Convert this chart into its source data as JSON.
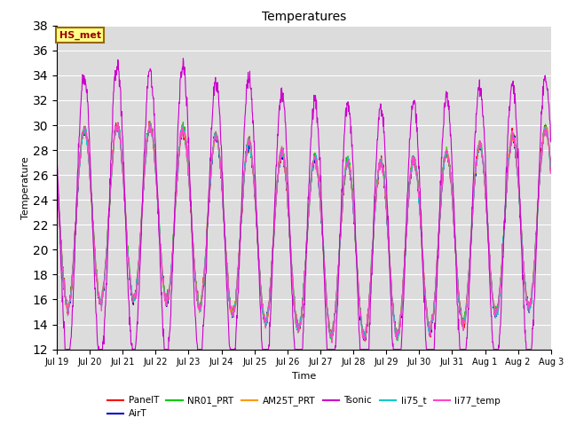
{
  "title": "Temperatures",
  "xlabel": "Time",
  "ylabel": "Temperature",
  "ylim": [
    12,
    38
  ],
  "yticks": [
    12,
    14,
    16,
    18,
    20,
    22,
    24,
    26,
    28,
    30,
    32,
    34,
    36,
    38
  ],
  "x_tick_labels": [
    "Jul 19",
    "Jul 20",
    "Jul 21",
    "Jul 22",
    "Jul 23",
    "Jul 24",
    "Jul 25",
    "Jul 26",
    "Jul 27",
    "Jul 28",
    "Jul 29",
    "Jul 30",
    "Jul 31",
    "Aug 1",
    "Aug 2",
    "Aug 3"
  ],
  "series_colors": {
    "PanelT": "#ff0000",
    "AirT": "#0000cc",
    "NR01_PRT": "#00cc00",
    "AM25T_PRT": "#ff9900",
    "Tsonic": "#cc00cc",
    "li75_t": "#00cccc",
    "li77_temp": "#ff44cc"
  },
  "annotation_text": "HS_met",
  "annotation_bg": "#ffff88",
  "annotation_border": "#996600",
  "annotation_text_color": "#990000",
  "plot_bg": "#dcdcdc",
  "fig_bg": "#ffffff",
  "n_points": 1440,
  "n_days": 15
}
